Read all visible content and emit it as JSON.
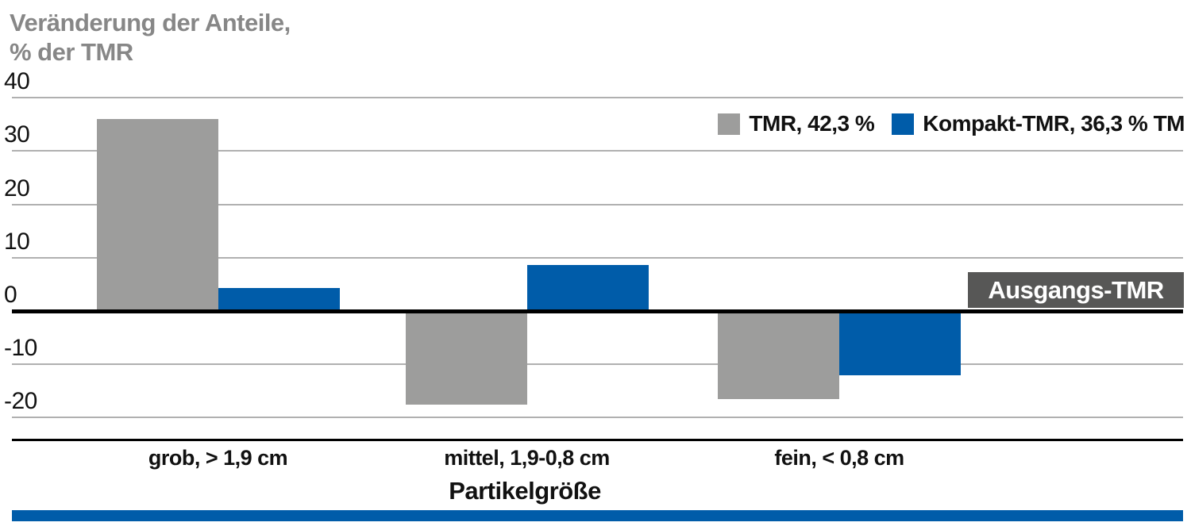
{
  "title": {
    "line1": "Veränderung der Anteile,",
    "line2": "% der TMR"
  },
  "xlabel": "Partikelgröße",
  "annotation": {
    "label": "Ausgangs-TMR",
    "bg": "#575756"
  },
  "legend": [
    {
      "label": "TMR, 42,3 %",
      "color": "#9D9D9C"
    },
    {
      "label": "Kompakt-TMR, 36,3 % TM",
      "color": "#005CA9"
    }
  ],
  "colors": {
    "gray_series": "#9D9D9C",
    "blue_series": "#005CA9",
    "annotation_bg": "#575756",
    "title_gray": "#878787",
    "gridline": "#b0b0b0",
    "zero_line": "#000000",
    "bottom_stripe": "#005CA9"
  },
  "chart_data": {
    "type": "bar",
    "title": "Veränderung der Anteile, % der TMR",
    "xlabel": "Partikelgröße",
    "ylabel": "Veränderung der Anteile, % der TMR",
    "categories": [
      "grob, > 1,9 cm",
      "mittel, 1,9-0,8 cm",
      "fein, < 0,8 cm"
    ],
    "series": [
      {
        "name": "TMR, 42,3 %",
        "color": "#9D9D9C",
        "values": [
          36,
          -17.5,
          -16.5
        ]
      },
      {
        "name": "Kompakt-TMR, 36,3 % TM",
        "color": "#005CA9",
        "values": [
          4.3,
          8.7,
          -12
        ]
      }
    ],
    "yticks": [
      40,
      30,
      20,
      10,
      0,
      -10,
      -20
    ],
    "ylim": [
      -25,
      45
    ],
    "grid": true,
    "legend_position": "top-right",
    "zero_baseline_annotation": "Ausgangs-TMR"
  }
}
